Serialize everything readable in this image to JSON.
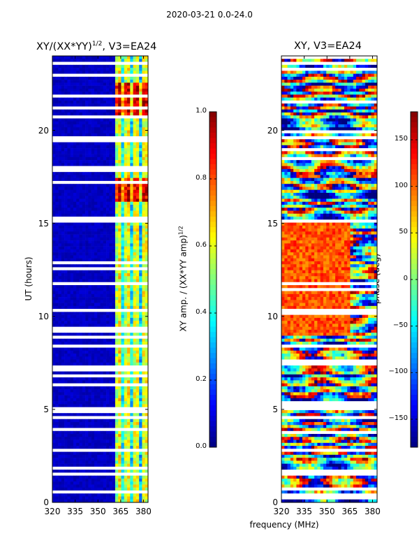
{
  "suptitle": "2020-03-21 0.0-24.0",
  "chart_data": [
    {
      "type": "heatmap",
      "title": "XY/(XX*YY)^(1/2), V3=EA24",
      "title_base": "XY/(XX*YY)",
      "title_exp": "1/2",
      "title_suffix": ", V3=EA24",
      "xlabel": "",
      "ylabel": "UT (hours)",
      "xlim": [
        320,
        383
      ],
      "ylim": [
        0,
        24
      ],
      "xticks": [
        320,
        335,
        350,
        365,
        380
      ],
      "yticks": [
        0,
        5,
        10,
        15,
        20
      ],
      "colorbar": {
        "label": "XY amp. / (XX*YY amp)^(1/2)",
        "label_base": "XY amp. / (XX*YY amp)",
        "label_exp": "1/2",
        "vmin": 0.0,
        "vmax": 1.0,
        "ticks": [
          0.0,
          0.2,
          0.4,
          0.6,
          0.8,
          1.0
        ],
        "tick_labels": [
          "0.0",
          "0.2",
          "0.4",
          "0.6",
          "0.8",
          "1.0"
        ],
        "colormap": "jet"
      }
    },
    {
      "type": "heatmap",
      "title": "XY, V3=EA24",
      "xlabel": "frequency (MHz)",
      "ylabel": "",
      "xlim": [
        320,
        383
      ],
      "ylim": [
        0,
        24
      ],
      "xticks": [
        320,
        335,
        350,
        365,
        380
      ],
      "yticks": [
        0,
        5,
        10,
        15,
        20
      ],
      "colorbar": {
        "label": "phase (deg)",
        "vmin": -180,
        "vmax": 180,
        "ticks": [
          -150,
          -100,
          -50,
          0,
          50,
          100,
          150
        ],
        "tick_labels": [
          "−150",
          "−100",
          "−50",
          "0",
          "50",
          "100",
          "150"
        ],
        "colormap": "jet"
      }
    }
  ]
}
